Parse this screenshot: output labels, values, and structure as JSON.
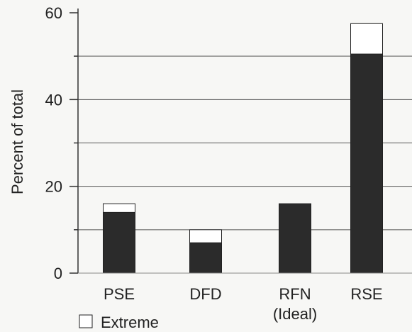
{
  "chart_data": {
    "type": "bar",
    "stacked": true,
    "categories": [
      "PSE",
      "DFD",
      "RFN\n(Ideal)",
      "RSE"
    ],
    "series": [
      {
        "values": [
          14,
          7,
          16,
          50.5
        ],
        "color": "#2b2b2b"
      },
      {
        "name": "Extreme",
        "values": [
          2,
          3,
          0,
          7
        ],
        "color": "#ffffff"
      }
    ],
    "ylabel": "Percent of total",
    "xlabel": "",
    "ylim": [
      0,
      60
    ],
    "yticks": [
      0,
      20,
      40,
      60
    ],
    "gridlines": [
      10,
      20,
      30,
      40,
      50
    ],
    "grid": true,
    "legend": {
      "position": "bottom-left",
      "items": [
        "Extreme"
      ]
    }
  }
}
